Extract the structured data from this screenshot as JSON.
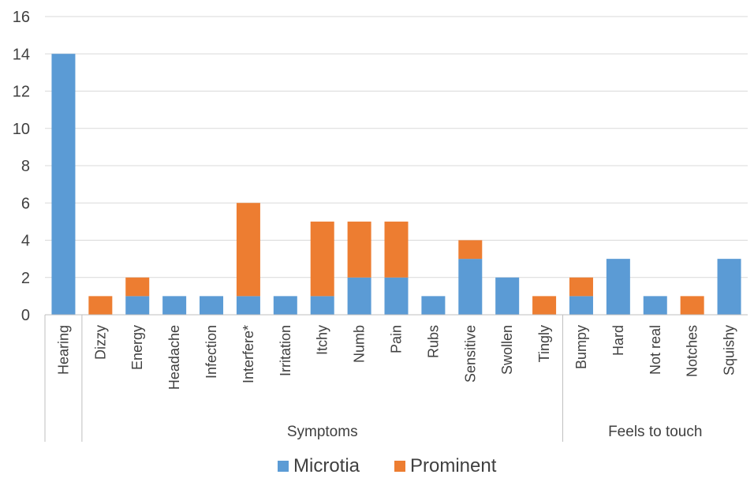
{
  "chart_data": {
    "type": "bar",
    "stacked": true,
    "categories": [
      "Hearing",
      "Dizzy",
      "Energy",
      "Headache",
      "Infection",
      "Interfere*",
      "Irritation",
      "Itchy",
      "Numb",
      "Pain",
      "Rubs",
      "Sensitive",
      "Swollen",
      "Tingly",
      "Bumpy",
      "Hard",
      "Not real",
      "Notches",
      "Squishy"
    ],
    "groups": [
      {
        "label": "",
        "categories": [
          "Hearing"
        ]
      },
      {
        "label": "Symptoms",
        "categories": [
          "Dizzy",
          "Energy",
          "Headache",
          "Infection",
          "Interfere*",
          "Irritation",
          "Itchy",
          "Numb",
          "Pain",
          "Rubs",
          "Sensitive",
          "Swollen",
          "Tingly"
        ]
      },
      {
        "label": "Feels to touch",
        "categories": [
          "Bumpy",
          "Hard",
          "Not real",
          "Notches",
          "Squishy"
        ]
      }
    ],
    "series": [
      {
        "name": "Microtia",
        "color": "#5b9bd5",
        "values": [
          14,
          0,
          1,
          1,
          1,
          1,
          1,
          1,
          2,
          2,
          1,
          3,
          2,
          0,
          1,
          3,
          1,
          0,
          3
        ]
      },
      {
        "name": "Prominent",
        "color": "#ed7d31",
        "values": [
          0,
          1,
          1,
          0,
          0,
          5,
          0,
          4,
          3,
          3,
          0,
          1,
          0,
          1,
          1,
          0,
          0,
          1,
          0
        ]
      }
    ],
    "yticks": [
      0,
      2,
      4,
      6,
      8,
      10,
      12,
      14,
      16
    ],
    "ylim": [
      0,
      16
    ],
    "grid": true,
    "legend": "bottom",
    "title": "",
    "xlabel": "",
    "ylabel": ""
  }
}
